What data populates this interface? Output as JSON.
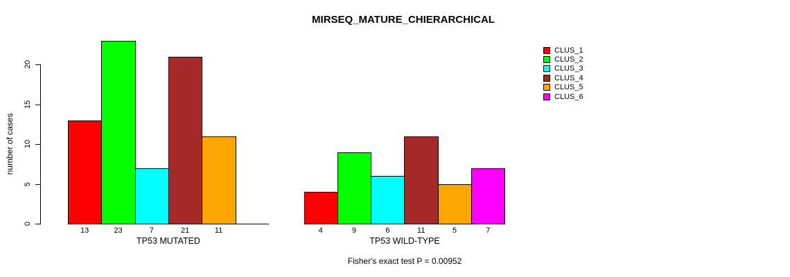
{
  "chart_data": {
    "type": "bar",
    "title": "MIRSEQ_MATURE_CHIERARCHICAL",
    "ylabel": "number of cases",
    "xlabel": "",
    "yticks": [
      0,
      5,
      10,
      15,
      20
    ],
    "ylim": [
      0,
      23
    ],
    "grid": false,
    "legend_position": "right",
    "series_colors": [
      "#FF0000",
      "#00FF00",
      "#00FFFF",
      "#A52A2A",
      "#FFA500",
      "#FF00FF"
    ],
    "legend": [
      {
        "label": "CLUS_1",
        "color": "#FF0000"
      },
      {
        "label": "CLUS_2",
        "color": "#00FF00"
      },
      {
        "label": "CLUS_3",
        "color": "#00FFFF"
      },
      {
        "label": "CLUS_4",
        "color": "#A52A2A"
      },
      {
        "label": "CLUS_5",
        "color": "#FFA500"
      },
      {
        "label": "CLUS_6",
        "color": "#FF00FF"
      }
    ],
    "groups": [
      {
        "xlabel": "TP53 MUTATED",
        "values": [
          13,
          23,
          7,
          21,
          11,
          0
        ],
        "bar_labels": [
          "13",
          "23",
          "7",
          "21",
          "11",
          ""
        ]
      },
      {
        "xlabel": "TP53 WILD-TYPE",
        "values": [
          4,
          9,
          6,
          11,
          5,
          7
        ],
        "bar_labels": [
          "4",
          "9",
          "6",
          "11",
          "5",
          "7"
        ]
      }
    ],
    "footer": "Fisher's exact test P = 0.00952"
  }
}
